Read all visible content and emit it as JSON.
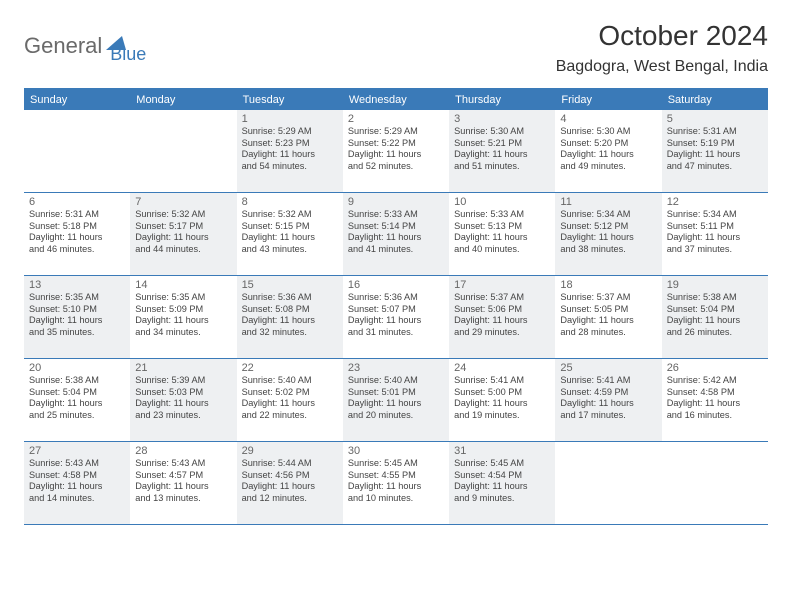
{
  "logo": {
    "part1": "General",
    "part2": "Blue"
  },
  "title": "October 2024",
  "location": "Bagdogra, West Bengal, India",
  "colors": {
    "accent": "#3a7ab8",
    "shaded_bg": "#eef0f2",
    "text": "#333333",
    "muted": "#666666"
  },
  "days_of_week": [
    "Sunday",
    "Monday",
    "Tuesday",
    "Wednesday",
    "Thursday",
    "Friday",
    "Saturday"
  ],
  "weeks": [
    [
      {
        "n": "",
        "shaded": false,
        "sunrise": "",
        "sunset": "",
        "daylight1": "",
        "daylight2": ""
      },
      {
        "n": "",
        "shaded": false,
        "sunrise": "",
        "sunset": "",
        "daylight1": "",
        "daylight2": ""
      },
      {
        "n": "1",
        "shaded": true,
        "sunrise": "Sunrise: 5:29 AM",
        "sunset": "Sunset: 5:23 PM",
        "daylight1": "Daylight: 11 hours",
        "daylight2": "and 54 minutes."
      },
      {
        "n": "2",
        "shaded": false,
        "sunrise": "Sunrise: 5:29 AM",
        "sunset": "Sunset: 5:22 PM",
        "daylight1": "Daylight: 11 hours",
        "daylight2": "and 52 minutes."
      },
      {
        "n": "3",
        "shaded": true,
        "sunrise": "Sunrise: 5:30 AM",
        "sunset": "Sunset: 5:21 PM",
        "daylight1": "Daylight: 11 hours",
        "daylight2": "and 51 minutes."
      },
      {
        "n": "4",
        "shaded": false,
        "sunrise": "Sunrise: 5:30 AM",
        "sunset": "Sunset: 5:20 PM",
        "daylight1": "Daylight: 11 hours",
        "daylight2": "and 49 minutes."
      },
      {
        "n": "5",
        "shaded": true,
        "sunrise": "Sunrise: 5:31 AM",
        "sunset": "Sunset: 5:19 PM",
        "daylight1": "Daylight: 11 hours",
        "daylight2": "and 47 minutes."
      }
    ],
    [
      {
        "n": "6",
        "shaded": false,
        "sunrise": "Sunrise: 5:31 AM",
        "sunset": "Sunset: 5:18 PM",
        "daylight1": "Daylight: 11 hours",
        "daylight2": "and 46 minutes."
      },
      {
        "n": "7",
        "shaded": true,
        "sunrise": "Sunrise: 5:32 AM",
        "sunset": "Sunset: 5:17 PM",
        "daylight1": "Daylight: 11 hours",
        "daylight2": "and 44 minutes."
      },
      {
        "n": "8",
        "shaded": false,
        "sunrise": "Sunrise: 5:32 AM",
        "sunset": "Sunset: 5:15 PM",
        "daylight1": "Daylight: 11 hours",
        "daylight2": "and 43 minutes."
      },
      {
        "n": "9",
        "shaded": true,
        "sunrise": "Sunrise: 5:33 AM",
        "sunset": "Sunset: 5:14 PM",
        "daylight1": "Daylight: 11 hours",
        "daylight2": "and 41 minutes."
      },
      {
        "n": "10",
        "shaded": false,
        "sunrise": "Sunrise: 5:33 AM",
        "sunset": "Sunset: 5:13 PM",
        "daylight1": "Daylight: 11 hours",
        "daylight2": "and 40 minutes."
      },
      {
        "n": "11",
        "shaded": true,
        "sunrise": "Sunrise: 5:34 AM",
        "sunset": "Sunset: 5:12 PM",
        "daylight1": "Daylight: 11 hours",
        "daylight2": "and 38 minutes."
      },
      {
        "n": "12",
        "shaded": false,
        "sunrise": "Sunrise: 5:34 AM",
        "sunset": "Sunset: 5:11 PM",
        "daylight1": "Daylight: 11 hours",
        "daylight2": "and 37 minutes."
      }
    ],
    [
      {
        "n": "13",
        "shaded": true,
        "sunrise": "Sunrise: 5:35 AM",
        "sunset": "Sunset: 5:10 PM",
        "daylight1": "Daylight: 11 hours",
        "daylight2": "and 35 minutes."
      },
      {
        "n": "14",
        "shaded": false,
        "sunrise": "Sunrise: 5:35 AM",
        "sunset": "Sunset: 5:09 PM",
        "daylight1": "Daylight: 11 hours",
        "daylight2": "and 34 minutes."
      },
      {
        "n": "15",
        "shaded": true,
        "sunrise": "Sunrise: 5:36 AM",
        "sunset": "Sunset: 5:08 PM",
        "daylight1": "Daylight: 11 hours",
        "daylight2": "and 32 minutes."
      },
      {
        "n": "16",
        "shaded": false,
        "sunrise": "Sunrise: 5:36 AM",
        "sunset": "Sunset: 5:07 PM",
        "daylight1": "Daylight: 11 hours",
        "daylight2": "and 31 minutes."
      },
      {
        "n": "17",
        "shaded": true,
        "sunrise": "Sunrise: 5:37 AM",
        "sunset": "Sunset: 5:06 PM",
        "daylight1": "Daylight: 11 hours",
        "daylight2": "and 29 minutes."
      },
      {
        "n": "18",
        "shaded": false,
        "sunrise": "Sunrise: 5:37 AM",
        "sunset": "Sunset: 5:05 PM",
        "daylight1": "Daylight: 11 hours",
        "daylight2": "and 28 minutes."
      },
      {
        "n": "19",
        "shaded": true,
        "sunrise": "Sunrise: 5:38 AM",
        "sunset": "Sunset: 5:04 PM",
        "daylight1": "Daylight: 11 hours",
        "daylight2": "and 26 minutes."
      }
    ],
    [
      {
        "n": "20",
        "shaded": false,
        "sunrise": "Sunrise: 5:38 AM",
        "sunset": "Sunset: 5:04 PM",
        "daylight1": "Daylight: 11 hours",
        "daylight2": "and 25 minutes."
      },
      {
        "n": "21",
        "shaded": true,
        "sunrise": "Sunrise: 5:39 AM",
        "sunset": "Sunset: 5:03 PM",
        "daylight1": "Daylight: 11 hours",
        "daylight2": "and 23 minutes."
      },
      {
        "n": "22",
        "shaded": false,
        "sunrise": "Sunrise: 5:40 AM",
        "sunset": "Sunset: 5:02 PM",
        "daylight1": "Daylight: 11 hours",
        "daylight2": "and 22 minutes."
      },
      {
        "n": "23",
        "shaded": true,
        "sunrise": "Sunrise: 5:40 AM",
        "sunset": "Sunset: 5:01 PM",
        "daylight1": "Daylight: 11 hours",
        "daylight2": "and 20 minutes."
      },
      {
        "n": "24",
        "shaded": false,
        "sunrise": "Sunrise: 5:41 AM",
        "sunset": "Sunset: 5:00 PM",
        "daylight1": "Daylight: 11 hours",
        "daylight2": "and 19 minutes."
      },
      {
        "n": "25",
        "shaded": true,
        "sunrise": "Sunrise: 5:41 AM",
        "sunset": "Sunset: 4:59 PM",
        "daylight1": "Daylight: 11 hours",
        "daylight2": "and 17 minutes."
      },
      {
        "n": "26",
        "shaded": false,
        "sunrise": "Sunrise: 5:42 AM",
        "sunset": "Sunset: 4:58 PM",
        "daylight1": "Daylight: 11 hours",
        "daylight2": "and 16 minutes."
      }
    ],
    [
      {
        "n": "27",
        "shaded": true,
        "sunrise": "Sunrise: 5:43 AM",
        "sunset": "Sunset: 4:58 PM",
        "daylight1": "Daylight: 11 hours",
        "daylight2": "and 14 minutes."
      },
      {
        "n": "28",
        "shaded": false,
        "sunrise": "Sunrise: 5:43 AM",
        "sunset": "Sunset: 4:57 PM",
        "daylight1": "Daylight: 11 hours",
        "daylight2": "and 13 minutes."
      },
      {
        "n": "29",
        "shaded": true,
        "sunrise": "Sunrise: 5:44 AM",
        "sunset": "Sunset: 4:56 PM",
        "daylight1": "Daylight: 11 hours",
        "daylight2": "and 12 minutes."
      },
      {
        "n": "30",
        "shaded": false,
        "sunrise": "Sunrise: 5:45 AM",
        "sunset": "Sunset: 4:55 PM",
        "daylight1": "Daylight: 11 hours",
        "daylight2": "and 10 minutes."
      },
      {
        "n": "31",
        "shaded": true,
        "sunrise": "Sunrise: 5:45 AM",
        "sunset": "Sunset: 4:54 PM",
        "daylight1": "Daylight: 11 hours",
        "daylight2": "and 9 minutes."
      },
      {
        "n": "",
        "shaded": false,
        "sunrise": "",
        "sunset": "",
        "daylight1": "",
        "daylight2": ""
      },
      {
        "n": "",
        "shaded": false,
        "sunrise": "",
        "sunset": "",
        "daylight1": "",
        "daylight2": ""
      }
    ]
  ]
}
